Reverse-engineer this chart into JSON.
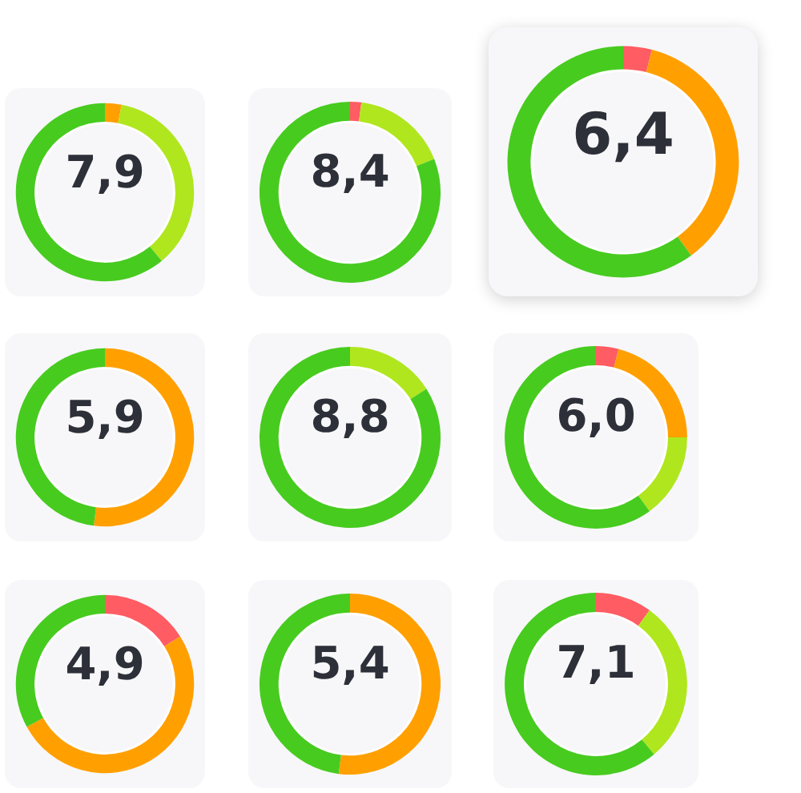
{
  "chart_data": [
    {
      "type": "donut",
      "categories": [
        null,
        null,
        null
      ],
      "values": [
        3,
        36,
        61
      ],
      "colors": [
        "#ffa000",
        "#b0e61e",
        "#47cb1f"
      ],
      "annotations": [
        "7,9"
      ]
    },
    {
      "type": "donut",
      "categories": [
        null,
        null,
        null
      ],
      "values": [
        2,
        17,
        81
      ],
      "colors": [
        "#ff5c63",
        "#b0e61e",
        "#47cb1f"
      ],
      "annotations": [
        "8,4"
      ]
    },
    {
      "type": "donut",
      "categories": [
        null,
        null,
        null
      ],
      "values": [
        4,
        36,
        60
      ],
      "colors": [
        "#ff5c63",
        "#ffa000",
        "#47cb1f"
      ],
      "annotations": [
        "6,4"
      ]
    },
    {
      "type": "donut",
      "categories": [
        null,
        null
      ],
      "values": [
        52,
        48
      ],
      "colors": [
        "#ffa000",
        "#47cb1f"
      ],
      "annotations": [
        "5,9"
      ]
    },
    {
      "type": "donut",
      "categories": [
        null,
        null
      ],
      "values": [
        16,
        84
      ],
      "colors": [
        "#b0e61e",
        "#47cb1f"
      ],
      "annotations": [
        "8,8"
      ]
    },
    {
      "type": "donut",
      "categories": [
        null,
        null,
        null,
        null
      ],
      "values": [
        4,
        21,
        15,
        60
      ],
      "colors": [
        "#ff5c63",
        "#ffa000",
        "#b0e61e",
        "#47cb1f"
      ],
      "annotations": [
        "6,0"
      ]
    },
    {
      "type": "donut",
      "categories": [
        null,
        null,
        null
      ],
      "values": [
        16,
        51,
        33
      ],
      "colors": [
        "#ff5c63",
        "#ffa000",
        "#47cb1f"
      ],
      "annotations": [
        "4,9"
      ]
    },
    {
      "type": "donut",
      "categories": [
        null,
        null
      ],
      "values": [
        52,
        48
      ],
      "colors": [
        "#ffa000",
        "#47cb1f"
      ],
      "annotations": [
        "5,4"
      ]
    },
    {
      "type": "donut",
      "categories": [
        null,
        null,
        null
      ],
      "values": [
        10,
        29,
        61
      ],
      "colors": [
        "#ff5c63",
        "#b0e61e",
        "#47cb1f"
      ],
      "annotations": [
        "7,1"
      ]
    }
  ]
}
